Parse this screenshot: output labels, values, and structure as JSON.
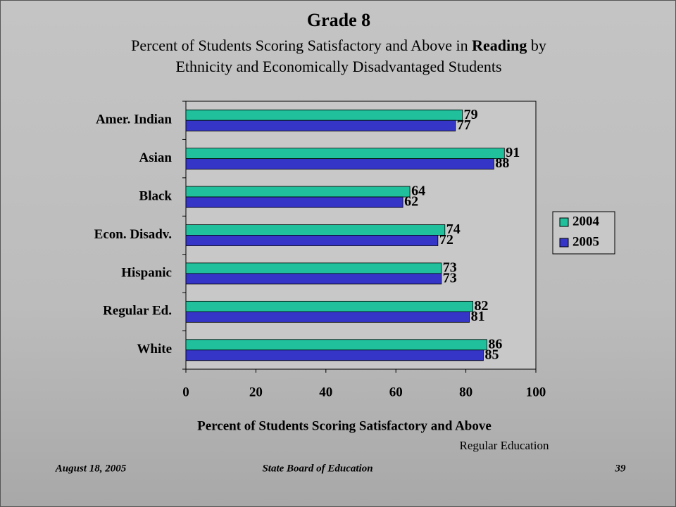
{
  "header": {
    "title": "Grade 8",
    "subtitle_parts": [
      "Percent of Students Scoring Satisfactory and Above in",
      "Reading",
      "by"
    ],
    "subtitle_line2": "Ethnicity and Economically Disadvantaged Students"
  },
  "chart_data": {
    "type": "hbar",
    "categories": [
      "Amer. Indian",
      "Asian",
      "Black",
      "Econ. Disadv.",
      "Hispanic",
      "Regular Ed.",
      "White"
    ],
    "series": [
      {
        "name": "2004",
        "color": "#20c09c",
        "values": [
          79,
          91,
          64,
          74,
          73,
          82,
          86
        ]
      },
      {
        "name": "2005",
        "color": "#3535c8",
        "values": [
          77,
          88,
          62,
          72,
          73,
          81,
          85
        ]
      }
    ],
    "xlim": [
      0,
      100
    ],
    "xticks": [
      0,
      20,
      40,
      60,
      80,
      100
    ],
    "xlabel": "Percent of Students Scoring Satisfactory and Above",
    "legend": "right"
  },
  "note": "Regular Education",
  "footer": {
    "date": "August 18, 2005",
    "org": "State Board of Education",
    "page": "39"
  }
}
